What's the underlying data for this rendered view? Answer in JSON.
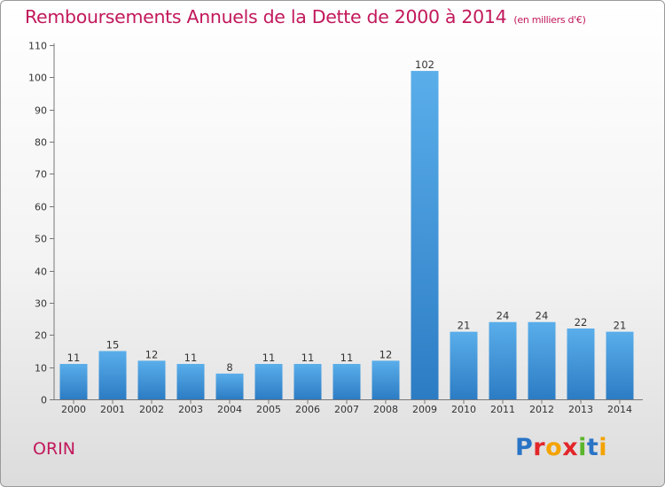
{
  "chart_data": {
    "type": "bar",
    "title": "Remboursements Annuels de la Dette de 2000 à 2014",
    "unit_note": "(en milliers d'€)",
    "categories": [
      "2000",
      "2001",
      "2002",
      "2003",
      "2004",
      "2005",
      "2006",
      "2007",
      "2008",
      "2009",
      "2010",
      "2011",
      "2012",
      "2013",
      "2014"
    ],
    "values": [
      11,
      15,
      12,
      11,
      8,
      11,
      11,
      11,
      12,
      102,
      21,
      24,
      24,
      22,
      21
    ],
    "ylim": [
      0,
      110
    ],
    "yticks": [
      0,
      10,
      20,
      30,
      40,
      50,
      60,
      70,
      80,
      90,
      100,
      110
    ],
    "grid": false,
    "bar_color": "#3d8fd6"
  },
  "footer": {
    "city": "ORIN",
    "logo_letters": [
      {
        "ch": "P",
        "color": "#2a74c6"
      },
      {
        "ch": "r",
        "color": "#e2262a"
      },
      {
        "ch": "o",
        "color": "#f4a300"
      },
      {
        "ch": "x",
        "color": "#e2262a"
      },
      {
        "ch": "i",
        "color": "#5bb52b"
      },
      {
        "ch": "t",
        "color": "#2a74c6"
      },
      {
        "ch": "i",
        "color": "#f4a300"
      }
    ]
  },
  "colors": {
    "accent": "#c2185b"
  }
}
